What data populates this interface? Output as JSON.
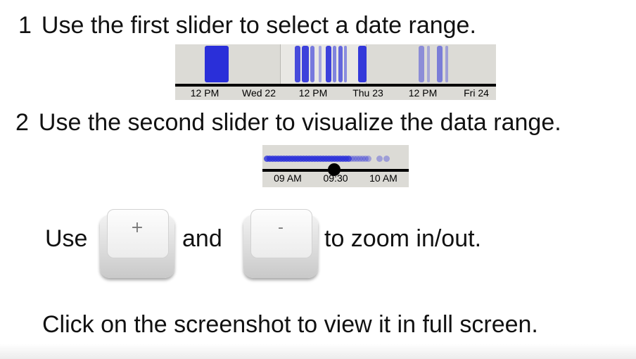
{
  "step1": {
    "number": "1",
    "text": "Use the first slider to select a date range."
  },
  "step2": {
    "number": "2",
    "text": "Use the second slider to visualize the data range."
  },
  "slider1": {
    "tick_labels": [
      "12 PM",
      "Wed 22",
      "12 PM",
      "Thu 23",
      "12 PM",
      "Fri 24"
    ],
    "data_color": "#2a2fd9",
    "track_color": "#dcdbd6"
  },
  "slider2": {
    "tick_labels": [
      "09 AM",
      "09:30",
      "10 AM"
    ],
    "data_color": "#2a2fd9"
  },
  "zoom": {
    "use_label": "Use",
    "and_label": "and",
    "suffix_label": "to zoom in/out.",
    "plus_key": "+",
    "minus_key": "-"
  },
  "fullscreen_hint": "Click on the screenshot to view it in full screen."
}
